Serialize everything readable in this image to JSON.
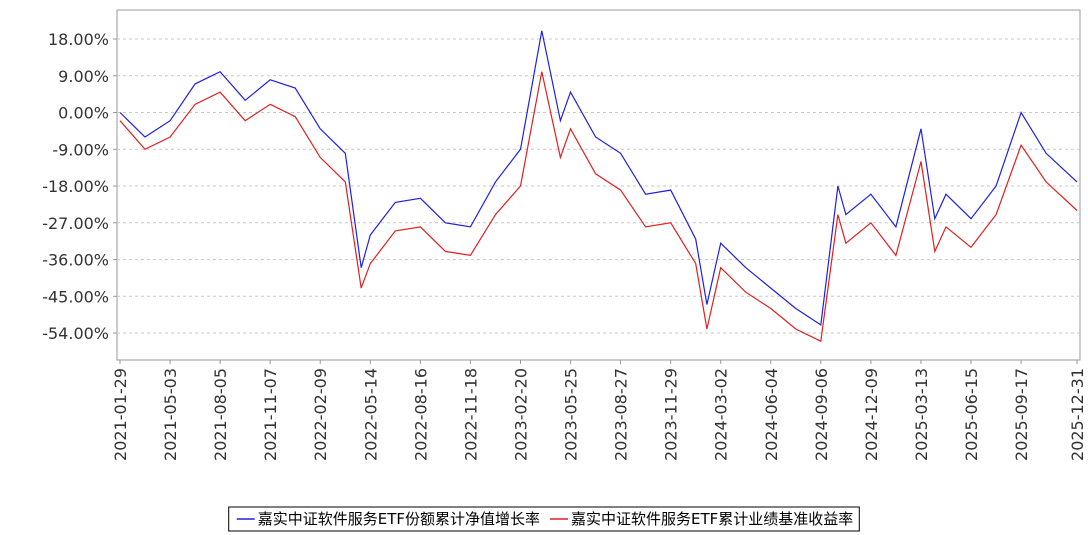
{
  "chart_data": {
    "type": "line",
    "x": [
      "2021-01-29",
      "2021-03-17",
      "2021-05-03",
      "2021-06-19",
      "2021-08-05",
      "2021-09-21",
      "2021-11-07",
      "2021-12-24",
      "2022-02-09",
      "2022-03-28",
      "2022-04-27",
      "2022-05-14",
      "2022-06-30",
      "2022-08-16",
      "2022-10-02",
      "2022-11-18",
      "2023-01-04",
      "2023-02-20",
      "2023-04-01",
      "2023-05-06",
      "2023-05-25",
      "2023-07-11",
      "2023-08-27",
      "2023-10-13",
      "2023-11-29",
      "2024-01-15",
      "2024-02-05",
      "2024-03-02",
      "2024-04-18",
      "2024-06-04",
      "2024-07-21",
      "2024-09-06",
      "2024-10-08",
      "2024-10-23",
      "2024-12-09",
      "2025-01-25",
      "2025-03-13",
      "2025-04-08",
      "2025-04-29",
      "2025-06-15",
      "2025-08-01",
      "2025-09-17",
      "2025-11-03",
      "2025-12-31"
    ],
    "series": [
      {
        "name": "嘉实中证软件服务ETF份额累计净值增长率",
        "color": "#2020e0",
        "values": [
          0,
          -6,
          -2,
          7,
          10,
          3,
          8,
          6,
          -4,
          -10,
          -38,
          -30,
          -22,
          -21,
          -27,
          -28,
          -17,
          -9,
          20,
          -2,
          5,
          -6,
          -10,
          -20,
          -19,
          -31,
          -47,
          -32,
          -38,
          -43,
          -48,
          -52,
          -18,
          -25,
          -20,
          -28,
          -4,
          -26,
          -20,
          -26,
          -18,
          0,
          -10,
          -17
        ]
      },
      {
        "name": "嘉实中证软件服务ETF累计业绩基准收益率",
        "color": "#e02020",
        "values": [
          -2,
          -9,
          -6,
          2,
          5,
          -2,
          2,
          -1,
          -11,
          -17,
          -43,
          -37,
          -29,
          -28,
          -34,
          -35,
          -25,
          -18,
          10,
          -11,
          -4,
          -15,
          -19,
          -28,
          -27,
          -37,
          -53,
          -38,
          -44,
          -48,
          -53,
          -56,
          -25,
          -32,
          -27,
          -35,
          -12,
          -34,
          -28,
          -33,
          -25,
          -8,
          -17,
          -24
        ]
      }
    ],
    "xlim": [
      "2021-01-29",
      "2025-12-31"
    ],
    "xticks": [
      "2021-01-29",
      "2021-05-03",
      "2021-08-05",
      "2021-11-07",
      "2022-02-09",
      "2022-05-14",
      "2022-08-16",
      "2022-11-18",
      "2023-02-20",
      "2023-05-25",
      "2023-08-27",
      "2023-11-29",
      "2024-03-02",
      "2024-06-04",
      "2024-09-06",
      "2024-12-09",
      "2025-03-13",
      "2025-06-15",
      "2025-09-17",
      "2025-12-31"
    ],
    "ylim": [
      -60.6,
      25.1
    ],
    "yticks": [
      {
        "value": 18,
        "label": "18.00%"
      },
      {
        "value": 9,
        "label": "9.00%"
      },
      {
        "value": 0,
        "label": "0.00%"
      },
      {
        "value": -9,
        "label": "-9.00%"
      },
      {
        "value": -18,
        "label": "-18.00%"
      },
      {
        "value": -27,
        "label": "-27.00%"
      },
      {
        "value": -36,
        "label": "-36.00%"
      },
      {
        "value": -45,
        "label": "-45.00%"
      },
      {
        "value": -54,
        "label": "-54.00%"
      }
    ],
    "grid": true
  }
}
